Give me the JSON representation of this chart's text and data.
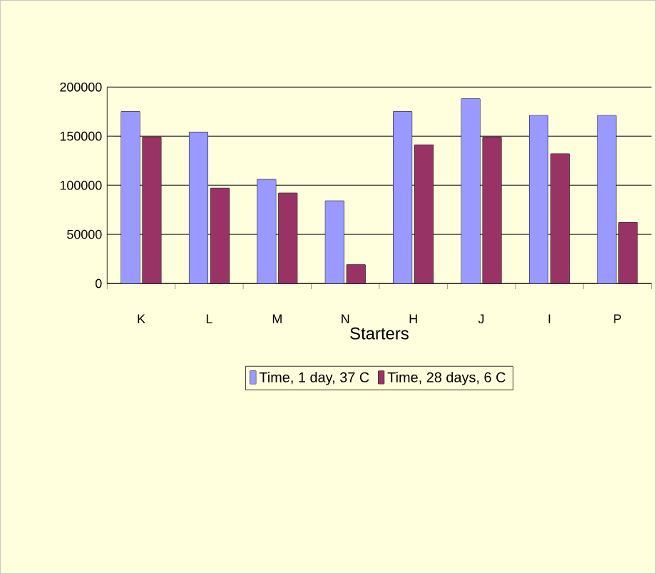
{
  "chart_data": {
    "type": "bar",
    "xlabel": "Starters",
    "categories": [
      "K",
      "L",
      "M",
      "N",
      "H",
      "J",
      "I",
      "P"
    ],
    "series": [
      {
        "name": "Time, 1 day, 37 C",
        "color": "#9999ff",
        "values": [
          175000,
          154000,
          106000,
          84000,
          175000,
          188000,
          171000,
          171000
        ]
      },
      {
        "name": "Time, 28 days, 6 C",
        "color": "#993366",
        "values": [
          149000,
          97000,
          92000,
          19000,
          141000,
          149000,
          132000,
          62000
        ]
      }
    ],
    "ylim": [
      0,
      200000
    ],
    "yticks": [
      0,
      50000,
      100000,
      150000,
      200000
    ],
    "grid": "y",
    "legend": "bottom"
  }
}
